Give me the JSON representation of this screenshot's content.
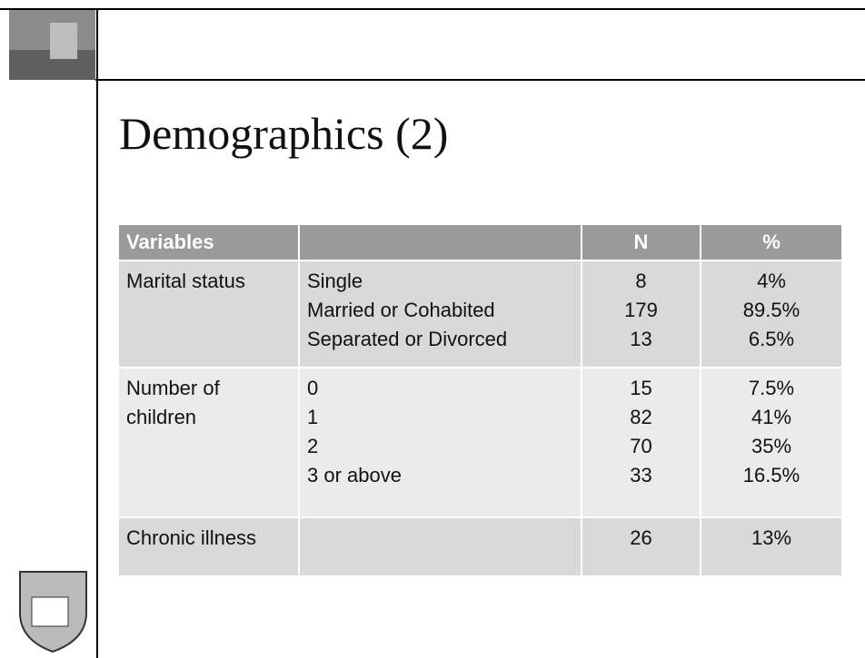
{
  "slide": {
    "title": "Demographics (2)",
    "table": {
      "header": [
        "Variables",
        "N",
        "%"
      ],
      "rows": [
        {
          "variable": [
            "Marital status"
          ],
          "items": [
            "Single",
            "Married or Cohabited",
            "Separated or Divorced"
          ],
          "n": [
            8,
            179,
            13
          ],
          "percent": [
            "4%",
            "89.5%",
            "6.5%"
          ]
        },
        {
          "variable": [
            "Number of",
            "children"
          ],
          "items": [
            "0",
            "1",
            "2",
            "3 or above"
          ],
          "n": [
            15,
            82,
            70,
            33
          ],
          "percent": [
            "7.5%",
            "41%",
            "35%",
            "16.5%"
          ]
        },
        {
          "variable": [
            "Chronic illness"
          ],
          "n": [
            26
          ],
          "percent": [
            "13%"
          ]
        }
      ]
    }
  }
}
